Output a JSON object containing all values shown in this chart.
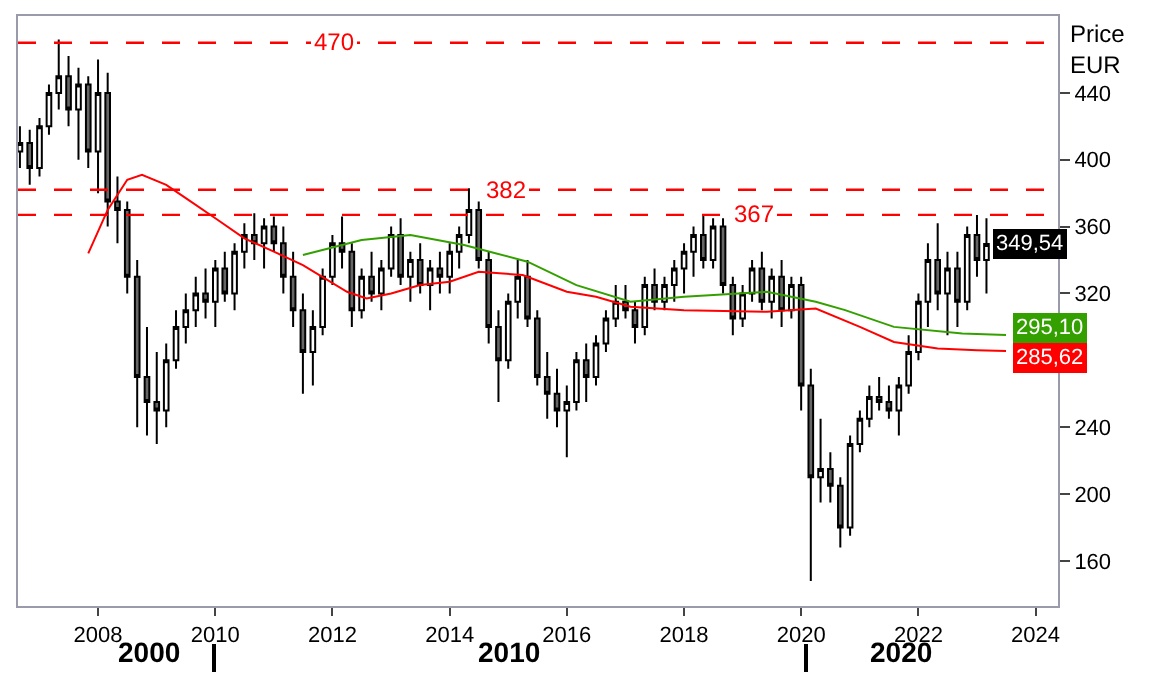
{
  "chart_data": {
    "type": "candlestick",
    "ylabel": "Price\nEUR",
    "xlim": [
      "2006-08-20",
      "2024-05-20"
    ],
    "ylim": [
      133,
      486
    ],
    "xticks": [
      {
        "value": "2008",
        "label": "2008"
      },
      {
        "value": "2010",
        "label": "2010"
      },
      {
        "value": "2012",
        "label": "2012"
      },
      {
        "value": "2014",
        "label": "2014"
      },
      {
        "value": "2016",
        "label": "2016"
      },
      {
        "value": "2018",
        "label": "2018"
      },
      {
        "value": "2020",
        "label": "2020"
      },
      {
        "value": "2022",
        "label": "2022"
      },
      {
        "value": "2024",
        "label": "2024"
      }
    ],
    "annotations": [
      "2000",
      "2010",
      "2020"
    ],
    "yticks": [
      160,
      200,
      240,
      {
        "value": 280,
        "label": null
      },
      320,
      360,
      400,
      440
    ],
    "grid": false,
    "ref_lines": [
      {
        "axis": "y",
        "value": 470,
        "label": "470",
        "color": "#ff0000",
        "line_style": "dashed"
      },
      {
        "axis": "y",
        "value": 382,
        "label": "382",
        "color": "#ff0000",
        "line_style": "dashed"
      },
      {
        "axis": "y",
        "value": 367,
        "label": "367",
        "color": "#ff0000",
        "line_style": "dashed"
      }
    ],
    "series": [
      {
        "type": "line",
        "color": "#ff0000",
        "x": [
          "2007-11",
          "2008-03",
          "2008-07",
          "2008-10",
          "2009-03",
          "2009-07",
          "2010-01",
          "2010-07",
          "2011-01",
          "2011-07",
          "2012-04",
          "2012-08",
          "2013-01",
          "2013-07",
          "2014-01",
          "2014-07",
          "2015-04",
          "2016-01",
          "2016-07",
          "2017-02",
          "2018-01",
          "2019-06",
          "2020-04",
          "2021-01",
          "2021-08",
          "2022-05",
          "2023-01",
          "2023-07"
        ],
        "values": [
          344,
          370,
          388,
          391,
          385,
          377,
          365,
          353,
          345,
          337,
          321,
          317,
          320,
          325,
          327,
          333,
          331,
          321,
          318,
          312,
          310,
          309,
          311,
          300,
          291,
          287,
          286,
          285.62
        ],
        "value_labels": [
          null,
          null,
          null,
          null,
          null,
          null,
          null,
          null,
          null,
          null,
          null,
          null,
          null,
          null,
          null,
          null,
          null,
          null,
          null,
          null,
          null,
          null,
          null,
          null,
          null,
          null,
          null,
          "285,62"
        ]
      },
      {
        "type": "line",
        "color": "#33a000",
        "x": [
          "2011-07",
          "2012-07",
          "2013-05",
          "2014-04",
          "2015-05",
          "2016-03",
          "2017-02",
          "2018-01",
          "2019-06",
          "2020-04",
          "2020-10",
          "2021-08",
          "2022-10",
          "2023-07"
        ],
        "values": [
          343,
          352,
          355,
          349,
          339,
          325,
          315,
          318,
          321,
          315,
          310,
          300,
          296,
          295.1
        ],
        "value_labels": [
          null,
          null,
          null,
          null,
          null,
          null,
          null,
          null,
          null,
          null,
          null,
          null,
          null,
          "295,10"
        ]
      },
      {
        "x": [
          "2006-09",
          "2006-11",
          "2007-01",
          "2007-03",
          "2007-05",
          "2007-07",
          "2007-09",
          "2007-11",
          "2008-01",
          "2008-03",
          "2008-05",
          "2008-07",
          "2008-09",
          "2008-11",
          "2009-01",
          "2009-03",
          "2009-05",
          "2009-07",
          "2009-09",
          "2009-11",
          "2010-01",
          "2010-03",
          "2010-05",
          "2010-07",
          "2010-09",
          "2010-11",
          "2011-01",
          "2011-03",
          "2011-05",
          "2011-07",
          "2011-09",
          "2011-11",
          "2012-01",
          "2012-03",
          "2012-05",
          "2012-07",
          "2012-09",
          "2012-11",
          "2013-01",
          "2013-03",
          "2013-05",
          "2013-07",
          "2013-09",
          "2013-11",
          "2014-01",
          "2014-03",
          "2014-05",
          "2014-07",
          "2014-09",
          "2014-11",
          "2015-01",
          "2015-03",
          "2015-05",
          "2015-07",
          "2015-09",
          "2015-11",
          "2016-01",
          "2016-03",
          "2016-05",
          "2016-07",
          "2016-09",
          "2016-11",
          "2017-01",
          "2017-03",
          "2017-05",
          "2017-07",
          "2017-09",
          "2017-11",
          "2018-01",
          "2018-03",
          "2018-05",
          "2018-07",
          "2018-09",
          "2018-11",
          "2019-01",
          "2019-03",
          "2019-05",
          "2019-07",
          "2019-09",
          "2019-11",
          "2020-01",
          "2020-03",
          "2020-05",
          "2020-07",
          "2020-09",
          "2020-11",
          "2021-01",
          "2021-03",
          "2021-05",
          "2021-07",
          "2021-09",
          "2021-11",
          "2022-01",
          "2022-03",
          "2022-05",
          "2022-07",
          "2022-09",
          "2022-11",
          "2023-01",
          "2023-03"
        ],
        "ohlc": [
          [
            405,
            420,
            395,
            410
          ],
          [
            410,
            418,
            385,
            395
          ],
          [
            395,
            425,
            390,
            420
          ],
          [
            420,
            445,
            415,
            440
          ],
          [
            440,
            472,
            430,
            450
          ],
          [
            450,
            462,
            420,
            430
          ],
          [
            430,
            455,
            400,
            445
          ],
          [
            445,
            450,
            395,
            405
          ],
          [
            405,
            460,
            380,
            440
          ],
          [
            440,
            452,
            360,
            375
          ],
          [
            375,
            390,
            350,
            370
          ],
          [
            370,
            375,
            320,
            330
          ],
          [
            330,
            340,
            240,
            270
          ],
          [
            270,
            300,
            235,
            255
          ],
          [
            255,
            285,
            230,
            250
          ],
          [
            250,
            290,
            240,
            280
          ],
          [
            280,
            310,
            275,
            300
          ],
          [
            300,
            320,
            290,
            310
          ],
          [
            310,
            330,
            300,
            320
          ],
          [
            320,
            335,
            305,
            315
          ],
          [
            315,
            340,
            300,
            335
          ],
          [
            335,
            345,
            315,
            320
          ],
          [
            320,
            350,
            310,
            345
          ],
          [
            345,
            362,
            335,
            355
          ],
          [
            355,
            368,
            340,
            350
          ],
          [
            350,
            365,
            335,
            360
          ],
          [
            360,
            366,
            345,
            350
          ],
          [
            350,
            360,
            320,
            330
          ],
          [
            330,
            345,
            300,
            310
          ],
          [
            310,
            320,
            260,
            285
          ],
          [
            285,
            310,
            265,
            300
          ],
          [
            300,
            335,
            295,
            330
          ],
          [
            330,
            355,
            325,
            350
          ],
          [
            350,
            366,
            335,
            345
          ],
          [
            345,
            350,
            300,
            310
          ],
          [
            310,
            335,
            305,
            330
          ],
          [
            330,
            345,
            315,
            320
          ],
          [
            320,
            340,
            310,
            335
          ],
          [
            335,
            360,
            330,
            355
          ],
          [
            355,
            365,
            325,
            330
          ],
          [
            330,
            345,
            315,
            340
          ],
          [
            340,
            350,
            320,
            325
          ],
          [
            325,
            340,
            310,
            335
          ],
          [
            335,
            345,
            320,
            330
          ],
          [
            330,
            350,
            320,
            345
          ],
          [
            345,
            360,
            335,
            355
          ],
          [
            355,
            383,
            350,
            370
          ],
          [
            370,
            375,
            335,
            340
          ],
          [
            340,
            345,
            290,
            300
          ],
          [
            300,
            310,
            255,
            280
          ],
          [
            280,
            320,
            275,
            315
          ],
          [
            315,
            340,
            305,
            330
          ],
          [
            330,
            340,
            300,
            305
          ],
          [
            305,
            310,
            265,
            270
          ],
          [
            270,
            285,
            245,
            260
          ],
          [
            260,
            275,
            240,
            250
          ],
          [
            250,
            265,
            222,
            255
          ],
          [
            255,
            285,
            250,
            280
          ],
          [
            280,
            290,
            255,
            270
          ],
          [
            270,
            295,
            265,
            290
          ],
          [
            290,
            310,
            285,
            305
          ],
          [
            305,
            325,
            300,
            315
          ],
          [
            315,
            325,
            305,
            310
          ],
          [
            310,
            315,
            290,
            300
          ],
          [
            300,
            330,
            295,
            325
          ],
          [
            325,
            335,
            310,
            315
          ],
          [
            315,
            330,
            310,
            325
          ],
          [
            325,
            340,
            315,
            335
          ],
          [
            335,
            350,
            320,
            345
          ],
          [
            345,
            360,
            330,
            355
          ],
          [
            355,
            367,
            335,
            340
          ],
          [
            340,
            365,
            335,
            360
          ],
          [
            360,
            365,
            320,
            325
          ],
          [
            325,
            330,
            295,
            305
          ],
          [
            305,
            325,
            300,
            320
          ],
          [
            320,
            340,
            315,
            335
          ],
          [
            335,
            345,
            310,
            315
          ],
          [
            315,
            335,
            305,
            330
          ],
          [
            330,
            340,
            300,
            310
          ],
          [
            310,
            330,
            305,
            325
          ],
          [
            325,
            330,
            250,
            265
          ],
          [
            265,
            275,
            148,
            210
          ],
          [
            210,
            245,
            195,
            215
          ],
          [
            215,
            225,
            195,
            205
          ],
          [
            205,
            210,
            168,
            180
          ],
          [
            180,
            235,
            175,
            230
          ],
          [
            230,
            250,
            225,
            245
          ],
          [
            245,
            265,
            240,
            258
          ],
          [
            258,
            270,
            250,
            255
          ],
          [
            255,
            265,
            245,
            250
          ],
          [
            250,
            270,
            235,
            265
          ],
          [
            265,
            295,
            260,
            285
          ],
          [
            285,
            320,
            280,
            315
          ],
          [
            315,
            350,
            300,
            340
          ],
          [
            340,
            362,
            310,
            320
          ],
          [
            320,
            345,
            295,
            335
          ],
          [
            335,
            345,
            300,
            315
          ],
          [
            315,
            360,
            310,
            355
          ],
          [
            355,
            367,
            330,
            340
          ],
          [
            340,
            365,
            320,
            349.54
          ]
        ],
        "value_labels": [
          null,
          null,
          null,
          null,
          null,
          null,
          null,
          null,
          null,
          null,
          null,
          null,
          null,
          null,
          null,
          null,
          null,
          null,
          null,
          null,
          null,
          null,
          null,
          null,
          null,
          null,
          null,
          null,
          null,
          null,
          null,
          null,
          null,
          null,
          null,
          null,
          null,
          null,
          null,
          null,
          null,
          null,
          null,
          null,
          null,
          null,
          null,
          null,
          null,
          null,
          null,
          null,
          null,
          null,
          null,
          null,
          null,
          null,
          null,
          null,
          null,
          null,
          null,
          null,
          null,
          null,
          null,
          null,
          null,
          null,
          null,
          null,
          null,
          null,
          null,
          null,
          null,
          null,
          null,
          null,
          null,
          null,
          null,
          null,
          null,
          null,
          null,
          null,
          null,
          null,
          null,
          null,
          null,
          null,
          null,
          null,
          null,
          null,
          null,
          "349,54"
        ]
      }
    ]
  }
}
